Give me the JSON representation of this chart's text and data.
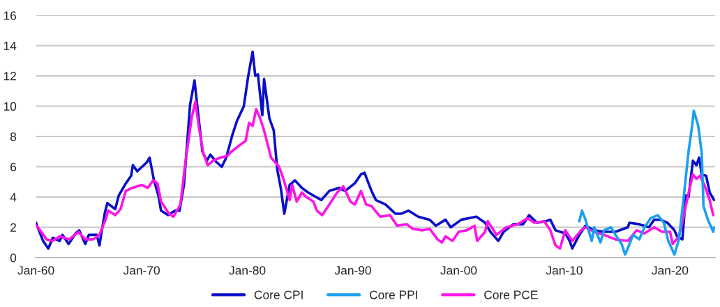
{
  "chart_data": {
    "type": "line",
    "xlim": [
      "1960-01",
      "2024-04"
    ],
    "ylim": [
      0,
      16
    ],
    "yticks": [
      0,
      2,
      4,
      6,
      8,
      10,
      12,
      14,
      16
    ],
    "xticks": [
      {
        "value": "1960-01",
        "label": "Jan-60"
      },
      {
        "value": "1970-01",
        "label": "Jan-70"
      },
      {
        "value": "1980-01",
        "label": "Jan-80"
      },
      {
        "value": "1990-01",
        "label": "Jan-90"
      },
      {
        "value": "2000-01",
        "label": "Jan-00"
      },
      {
        "value": "2010-01",
        "label": "Jan-10"
      },
      {
        "value": "2020-01",
        "label": "Jan-20"
      }
    ],
    "grid": "y",
    "legend": "bottom",
    "line_style": "solid",
    "marker": "none",
    "series": [
      {
        "name": "Core CPI",
        "color": "#0a0fc8",
        "x": [
          "1960-01",
          "1960-09",
          "1961-03",
          "1961-08",
          "1962-04",
          "1962-07",
          "1963-02",
          "1963-10",
          "1964-02",
          "1964-09",
          "1965-01",
          "1965-10",
          "1966-01",
          "1966-07",
          "1966-10",
          "1967-07",
          "1967-11",
          "1968-07",
          "1969-01",
          "1969-03",
          "1969-08",
          "1970-07",
          "1970-10",
          "1971-03",
          "1971-08",
          "1971-11",
          "1972-07",
          "1973-03",
          "1973-08",
          "1974-01",
          "1974-08",
          "1975-01",
          "1975-04",
          "1975-10",
          "1976-03",
          "1976-07",
          "1977-02",
          "1977-08",
          "1978-01",
          "1978-08",
          "1979-01",
          "1979-09",
          "1980-02",
          "1980-07",
          "1980-10",
          "1981-01",
          "1981-06",
          "1981-08",
          "1982-02",
          "1982-07",
          "1982-11",
          "1983-03",
          "1983-07",
          "1984-01",
          "1984-07",
          "1985-03",
          "1985-10",
          "1986-07",
          "1987-01",
          "1987-10",
          "1988-09",
          "1989-04",
          "1990-03",
          "1990-10",
          "1991-02",
          "1991-10",
          "1992-03",
          "1993-02",
          "1994-01",
          "1994-08",
          "1995-04",
          "1996-03",
          "1997-04",
          "1997-11",
          "1998-10",
          "1999-04",
          "2000-04",
          "2001-09",
          "2002-07",
          "2003-01",
          "2003-10",
          "2004-04",
          "2005-03",
          "2006-02",
          "2006-09",
          "2007-06",
          "2008-04",
          "2008-09",
          "2009-03",
          "2010-02",
          "2010-07",
          "2010-10",
          "2011-06",
          "2012-01",
          "2012-11",
          "2013-10",
          "2014-11",
          "2016-01",
          "2016-03",
          "2017-02",
          "2018-01",
          "2018-07",
          "2019-02",
          "2019-10",
          "2020-06",
          "2020-09",
          "2021-03",
          "2021-07",
          "2021-10",
          "2022-03",
          "2022-07",
          "2022-10",
          "2023-01",
          "2023-06",
          "2023-10",
          "2024-03"
        ],
        "values": [
          2.3,
          1.1,
          0.6,
          1.3,
          1.1,
          1.5,
          0.9,
          1.6,
          1.8,
          0.9,
          1.5,
          1.5,
          0.8,
          2.9,
          3.6,
          3.2,
          4.1,
          4.9,
          5.4,
          6.1,
          5.7,
          6.3,
          6.6,
          5.1,
          4.1,
          3.1,
          2.8,
          3.1,
          3.1,
          4.8,
          10.1,
          11.7,
          10.1,
          7.0,
          6.4,
          6.8,
          6.3,
          6.0,
          6.6,
          8.1,
          9.0,
          10.0,
          12.0,
          13.6,
          12.0,
          12.1,
          9.4,
          11.8,
          9.2,
          8.4,
          5.8,
          4.6,
          2.9,
          4.8,
          5.1,
          4.6,
          4.3,
          4.0,
          3.8,
          4.4,
          4.6,
          4.4,
          4.9,
          5.5,
          5.6,
          4.4,
          3.8,
          3.5,
          2.9,
          2.9,
          3.1,
          2.7,
          2.5,
          2.1,
          2.5,
          2.0,
          2.5,
          2.7,
          2.3,
          1.7,
          1.1,
          1.7,
          2.2,
          2.2,
          2.8,
          2.3,
          2.4,
          2.5,
          1.8,
          1.6,
          1.1,
          0.6,
          1.5,
          2.1,
          1.8,
          1.7,
          1.7,
          2.0,
          2.3,
          2.2,
          2.0,
          2.5,
          2.5,
          2.3,
          1.8,
          1.4,
          1.2,
          4.1,
          4.0,
          6.4,
          6.1,
          6.6,
          5.5,
          5.4,
          4.3,
          3.8
        ]
      },
      {
        "name": "Core PPI",
        "color": "#1a9ff0",
        "x": [
          "2011-06",
          "2011-09",
          "2012-01",
          "2012-08",
          "2012-11",
          "2013-06",
          "2013-10",
          "2014-06",
          "2014-11",
          "2015-06",
          "2015-10",
          "2016-01",
          "2016-07",
          "2017-02",
          "2017-08",
          "2018-03",
          "2018-11",
          "2019-06",
          "2019-11",
          "2020-06",
          "2020-11",
          "2021-04",
          "2021-10",
          "2022-02",
          "2022-04",
          "2022-09",
          "2023-01",
          "2023-03",
          "2023-08",
          "2024-02",
          "2024-03"
        ],
        "values": [
          2.4,
          3.1,
          2.5,
          1.1,
          2.0,
          1.0,
          1.8,
          2.0,
          1.5,
          0.9,
          0.2,
          0.6,
          1.5,
          1.2,
          2.0,
          2.6,
          2.8,
          2.3,
          1.1,
          0.2,
          1.2,
          3.7,
          7.0,
          8.7,
          9.7,
          8.7,
          6.9,
          3.4,
          2.5,
          1.7,
          2.0
        ]
      },
      {
        "name": "Core PCE",
        "color": "#ff14e6",
        "x": [
          "1960-02",
          "1961-01",
          "1961-08",
          "1962-04",
          "1963-03",
          "1964-01",
          "1964-09",
          "1965-06",
          "1966-01",
          "1966-08",
          "1966-11",
          "1967-07",
          "1968-01",
          "1968-07",
          "1969-02",
          "1970-01",
          "1970-08",
          "1971-02",
          "1971-07",
          "1971-11",
          "1972-08",
          "1973-01",
          "1973-09",
          "1974-02",
          "1974-10",
          "1975-02",
          "1975-06",
          "1975-11",
          "1976-04",
          "1976-10",
          "1977-06",
          "1978-02",
          "1978-07",
          "1979-06",
          "1979-11",
          "1980-03",
          "1980-07",
          "1980-11",
          "1981-03",
          "1981-08",
          "1982-04",
          "1983-01",
          "1983-06",
          "1984-01",
          "1984-04",
          "1984-09",
          "1985-03",
          "1985-08",
          "1986-04",
          "1986-08",
          "1987-02",
          "1987-10",
          "1988-07",
          "1989-02",
          "1989-10",
          "1990-03",
          "1990-10",
          "1991-04",
          "1991-10",
          "1992-08",
          "1993-07",
          "1994-03",
          "1995-02",
          "1995-09",
          "1996-08",
          "1997-04",
          "1998-01",
          "1998-06",
          "1998-10",
          "1999-06",
          "2000-01",
          "2000-10",
          "2001-07",
          "2001-10",
          "2002-07",
          "2002-10",
          "2003-08",
          "2004-07",
          "2005-08",
          "2006-07",
          "2007-03",
          "2008-02",
          "2008-09",
          "2009-03",
          "2009-08",
          "2010-02",
          "2010-10",
          "2011-08",
          "2012-01",
          "2012-11",
          "2013-10",
          "2014-11",
          "2016-01",
          "2016-11",
          "2017-08",
          "2018-07",
          "2019-04",
          "2020-01",
          "2020-04",
          "2020-11",
          "2021-04",
          "2021-09",
          "2022-03",
          "2022-07",
          "2022-11",
          "2023-04",
          "2023-10",
          "2024-02"
        ],
        "values": [
          2.1,
          1.2,
          1.1,
          1.4,
          1.2,
          1.7,
          1.2,
          1.2,
          1.5,
          2.5,
          3.1,
          2.8,
          3.2,
          4.4,
          4.6,
          4.8,
          4.6,
          5.1,
          4.9,
          3.7,
          2.9,
          2.7,
          3.5,
          6.0,
          9.3,
          10.3,
          8.6,
          6.9,
          6.1,
          6.4,
          6.6,
          6.7,
          7.0,
          7.5,
          7.7,
          8.9,
          8.7,
          9.8,
          9.3,
          8.4,
          6.6,
          6.0,
          5.2,
          3.8,
          4.8,
          3.7,
          4.3,
          4.0,
          3.7,
          3.1,
          2.8,
          3.5,
          4.3,
          4.7,
          3.7,
          3.5,
          4.4,
          3.5,
          3.4,
          2.7,
          2.8,
          2.1,
          2.2,
          1.9,
          1.8,
          1.9,
          1.2,
          1.0,
          1.4,
          1.1,
          1.7,
          1.8,
          2.1,
          1.1,
          1.7,
          2.4,
          1.5,
          2.0,
          2.2,
          2.6,
          2.3,
          2.4,
          1.8,
          0.8,
          0.6,
          1.8,
          1.1,
          1.8,
          2.0,
          1.7,
          1.5,
          1.2,
          1.1,
          1.8,
          1.6,
          2.0,
          1.7,
          1.7,
          0.9,
          1.4,
          2.6,
          4.0,
          5.5,
          5.2,
          5.4,
          4.8,
          3.8,
          2.8
        ]
      }
    ]
  }
}
